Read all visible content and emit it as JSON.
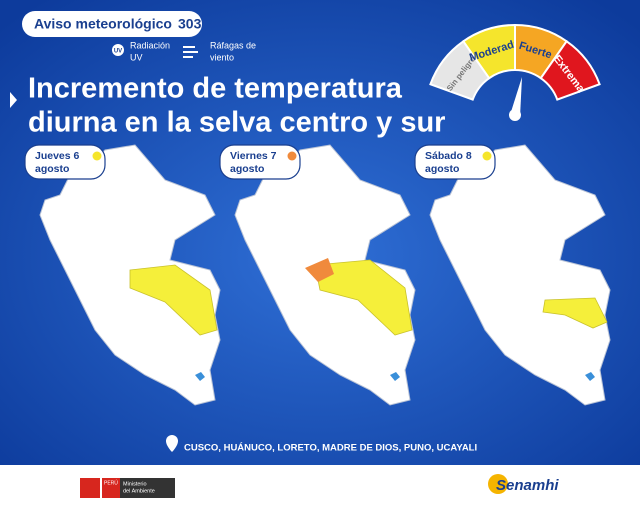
{
  "header": {
    "badge": "Aviso meteorológico",
    "number": "303",
    "legend": [
      {
        "icon": "UV",
        "label_lines": [
          "Radiación",
          "UV"
        ]
      },
      {
        "label_lines": [
          "Ráfagas de",
          "viento"
        ]
      }
    ],
    "title_lines": [
      "Incremento de temperatura",
      "diurna en la selva centro y sur"
    ]
  },
  "gauge": {
    "levels": [
      {
        "label": "Sin peligro",
        "color": "#e6e6e6"
      },
      {
        "label": "Moderada",
        "color": "#f5e52c"
      },
      {
        "label": "Fuerte",
        "color": "#f5a623"
      },
      {
        "label": "Extrema",
        "color": "#e0161e"
      }
    ]
  },
  "days": [
    {
      "day": "Jueves 6",
      "month": "agosto",
      "color": "#f5e52c"
    },
    {
      "day": "Viernes 7",
      "month": "agosto",
      "color": "#f08a3c"
    },
    {
      "day": "Sábado 8",
      "month": "agosto",
      "color": "#f5e52c"
    }
  ],
  "regions": "CUSCO, HUÁNUCO, LORETO, MADRE DE DIOS, PUNO, UCAYALI",
  "footer": {
    "country": "PERÚ",
    "ministry_lines": [
      "Ministerio",
      "del Ambiente"
    ],
    "brand": "Senamhi"
  }
}
